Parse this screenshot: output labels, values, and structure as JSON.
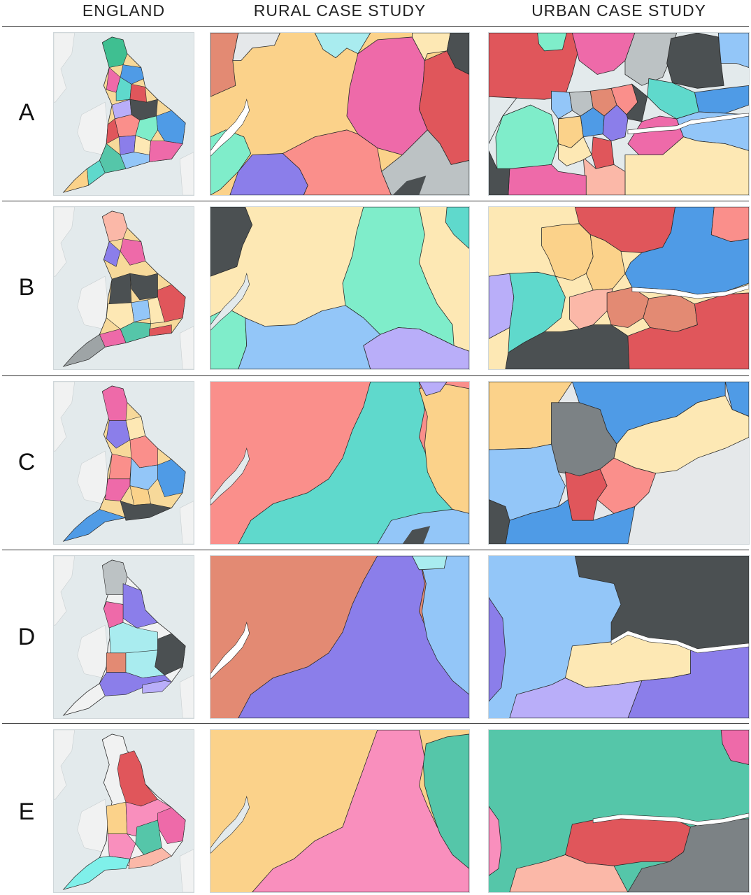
{
  "columns": {
    "england": "ENGLAND",
    "rural": "RURAL CASE STUDY",
    "urban": "URBAN CASE STUDY"
  },
  "rows": [
    {
      "label": "A"
    },
    {
      "label": "B"
    },
    {
      "label": "C"
    },
    {
      "label": "D"
    },
    {
      "label": "E"
    }
  ],
  "colors": {
    "sea": "#e3eaec",
    "land": "#f1f2f2",
    "border": "#2b2b2b",
    "river": "#ffffff",
    "orange": "#fbd28a",
    "pink": "#ee6aa9",
    "red": "#e0565b",
    "salmon": "#fa8f8b",
    "teal": "#5fd9cc",
    "mint": "#7fedca",
    "purple": "#8b7eea",
    "lavender": "#b9aef9",
    "blue": "#4f9be6",
    "lightblue": "#93c6f8",
    "cream": "#fde8b4",
    "dark": "#4b5052",
    "grey": "#bcc2c4",
    "coral": "#e38a73",
    "green": "#55c6a9"
  }
}
